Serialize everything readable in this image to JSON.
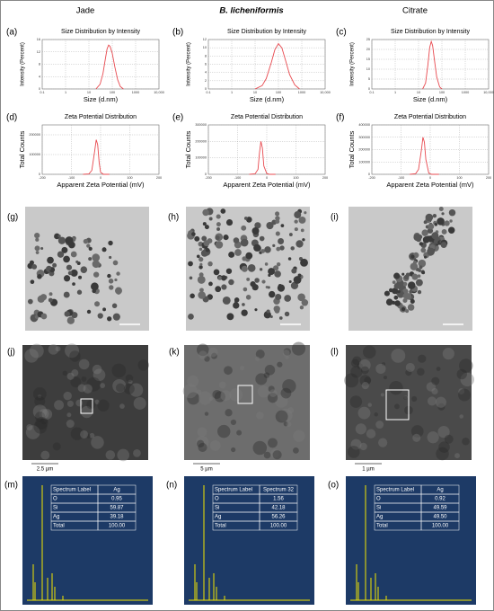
{
  "columns": [
    "Jade",
    "B. licheniformis",
    "Citrate"
  ],
  "chart_data": [
    {
      "type": "line",
      "label": "(a)",
      "title": "Size Distribution by Intensity",
      "x_label": "Size (d.nm)",
      "y_label": "Intensity (Percent)",
      "log_x": true,
      "grid": true,
      "color": "#e8494f",
      "xlim": [
        0.1,
        10000
      ],
      "xticks": [
        0.1,
        1,
        10,
        100,
        1000,
        {
          "value": 10000,
          "label": "10,000"
        }
      ],
      "ylim": [
        0,
        16
      ],
      "yticks": [
        0,
        4,
        8,
        12,
        16
      ],
      "x": [
        20,
        30,
        40,
        50,
        60,
        70,
        80,
        100,
        130,
        170,
        220,
        300
      ],
      "values": [
        0,
        1.5,
        5,
        9.5,
        13,
        14.2,
        13.8,
        11.5,
        7,
        3,
        0.8,
        0
      ]
    },
    {
      "type": "line",
      "label": "(b)",
      "title": "Size Distribution by Intensity",
      "x_label": "Size (d.nm)",
      "y_label": "Intensity (Percent)",
      "log_x": true,
      "grid": true,
      "color": "#e8494f",
      "xlim": [
        0.1,
        10000
      ],
      "xticks": [
        0.1,
        1,
        10,
        100,
        1000,
        {
          "value": 10000,
          "label": "10,000"
        }
      ],
      "ylim": [
        0,
        12
      ],
      "yticks": [
        0,
        2,
        4,
        6,
        8,
        10,
        12
      ],
      "x": [
        10,
        20,
        30,
        50,
        70,
        100,
        140,
        200,
        300,
        500,
        800
      ],
      "values": [
        0,
        0.8,
        2.5,
        6.5,
        9.5,
        11,
        10,
        7,
        3.5,
        1,
        0
      ]
    },
    {
      "type": "line",
      "label": "(c)",
      "title": "Size Distribution by Intensity",
      "x_label": "Size (d.nm)",
      "y_label": "Intensity (Percent)",
      "log_x": true,
      "grid": true,
      "color": "#e8494f",
      "xlim": [
        0.1,
        10000
      ],
      "xticks": [
        0.1,
        1,
        10,
        100,
        1000,
        {
          "value": 10000,
          "label": "10,000"
        }
      ],
      "ylim": [
        0,
        25
      ],
      "yticks": [
        0,
        5,
        10,
        15,
        20,
        25
      ],
      "x": [
        15,
        20,
        25,
        30,
        35,
        40,
        50,
        60,
        80,
        100
      ],
      "values": [
        0,
        3,
        12,
        21,
        24,
        22,
        13,
        6,
        1,
        0
      ]
    },
    {
      "type": "line",
      "label": "(d)",
      "title": "Zeta Potential Distribution",
      "x_label": "Apparent Zeta Potential (mV)",
      "y_label": "Total Counts",
      "log_x": false,
      "grid": true,
      "color": "#e8494f",
      "xlim": [
        -200,
        200
      ],
      "xticks": [
        -200,
        -100,
        0,
        100,
        200
      ],
      "ylim": [
        0,
        250000
      ],
      "yticks": [
        0,
        100000,
        200000
      ],
      "x": [
        -60,
        -40,
        -30,
        -20,
        -15,
        -10,
        -5,
        0,
        10,
        30
      ],
      "values": [
        0,
        2000,
        20000,
        120000,
        175000,
        150000,
        60000,
        10000,
        0,
        0
      ]
    },
    {
      "type": "line",
      "label": "(e)",
      "title": "Zeta Potential Distribution",
      "x_label": "Apparent Zeta Potential (mV)",
      "y_label": "Total Counts",
      "log_x": false,
      "grid": true,
      "color": "#e8494f",
      "xlim": [
        -200,
        200
      ],
      "xticks": [
        -200,
        -100,
        0,
        100,
        200
      ],
      "ylim": [
        0,
        300000
      ],
      "yticks": [
        0,
        100000,
        200000,
        300000
      ],
      "x": [
        -60,
        -40,
        -30,
        -25,
        -20,
        -15,
        -10,
        0,
        10,
        30
      ],
      "values": [
        0,
        3000,
        30000,
        130000,
        200000,
        160000,
        50000,
        5000,
        0,
        0
      ]
    },
    {
      "type": "line",
      "label": "(f)",
      "title": "Zeta Potential Distribution",
      "x_label": "Apparent Zeta Potential (mV)",
      "y_label": "Total Counts",
      "log_x": false,
      "grid": true,
      "color": "#e8494f",
      "xlim": [
        -200,
        200
      ],
      "xticks": [
        -200,
        -100,
        0,
        100,
        200
      ],
      "ylim": [
        0,
        400000
      ],
      "yticks": [
        0,
        100000,
        200000,
        300000,
        400000
      ],
      "x": [
        -70,
        -50,
        -40,
        -30,
        -25,
        -20,
        -15,
        -5,
        5,
        30
      ],
      "values": [
        0,
        5000,
        40000,
        200000,
        300000,
        260000,
        120000,
        10000,
        0,
        0
      ]
    }
  ],
  "panel_labels": [
    "(g)",
    "(h)",
    "(i)",
    "(j)",
    "(k)",
    "(l)",
    "(m)",
    "(n)",
    "(o)"
  ],
  "sem_scale_bars": [
    "2.5 µm",
    "5 µm",
    "1 µm"
  ],
  "eds_tables": [
    {
      "header": [
        "Spectrum Label",
        "Ag"
      ],
      "rows": [
        [
          "O",
          "0.95"
        ],
        [
          "Si",
          "59.87"
        ],
        [
          "Ag",
          "39.18"
        ],
        [
          "Total",
          "100.00"
        ]
      ]
    },
    {
      "header": [
        "Spectrum Label",
        "Spectrum 32"
      ],
      "rows": [
        [
          "O",
          "1.56"
        ],
        [
          "Si",
          "42.18"
        ],
        [
          "Ag",
          "56.26"
        ],
        [
          "Total",
          "100.00"
        ]
      ]
    },
    {
      "header": [
        "Spectrum Label",
        "Ag"
      ],
      "rows": [
        [
          "O",
          "0.92"
        ],
        [
          "Si",
          "49.59"
        ],
        [
          "Ag",
          "49.50"
        ],
        [
          "Total",
          "100.00"
        ]
      ]
    }
  ]
}
